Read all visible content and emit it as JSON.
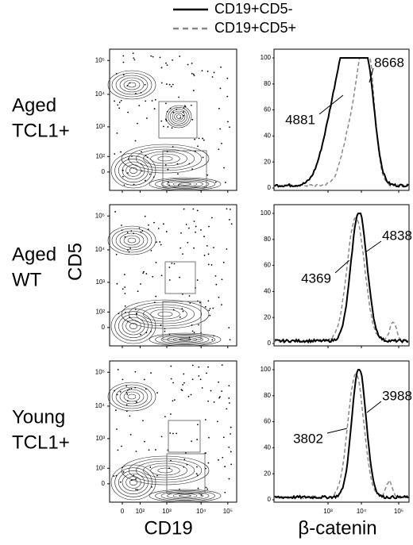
{
  "legend": [
    "CD19+CD5-",
    "CD19+CD5+"
  ],
  "rows": [
    {
      "label": [
        "Aged",
        "TCL1+"
      ],
      "solid_value": 4881,
      "dashed_value": 8668
    },
    {
      "label": [
        "Aged",
        "WT"
      ],
      "solid_value": 4369,
      "dashed_value": 4838
    },
    {
      "label": [
        "Young",
        "TCL1+"
      ],
      "solid_value": 3802,
      "dashed_value": 3988
    }
  ],
  "axes": {
    "y_label": "CD5",
    "x_label_left": "CD19",
    "x_label_right": "β-catenin",
    "contour_yticks": [
      "10⁵",
      "10⁴",
      "10³",
      "10²",
      "0"
    ],
    "contour_xticks": [
      "0",
      "10²",
      "10³",
      "10⁴",
      "10⁵"
    ],
    "hist_yticks": [
      "0",
      "20",
      "40",
      "60",
      "80",
      "100"
    ],
    "hist_xticks": [
      "10³",
      "10⁴",
      "10⁵"
    ]
  }
}
